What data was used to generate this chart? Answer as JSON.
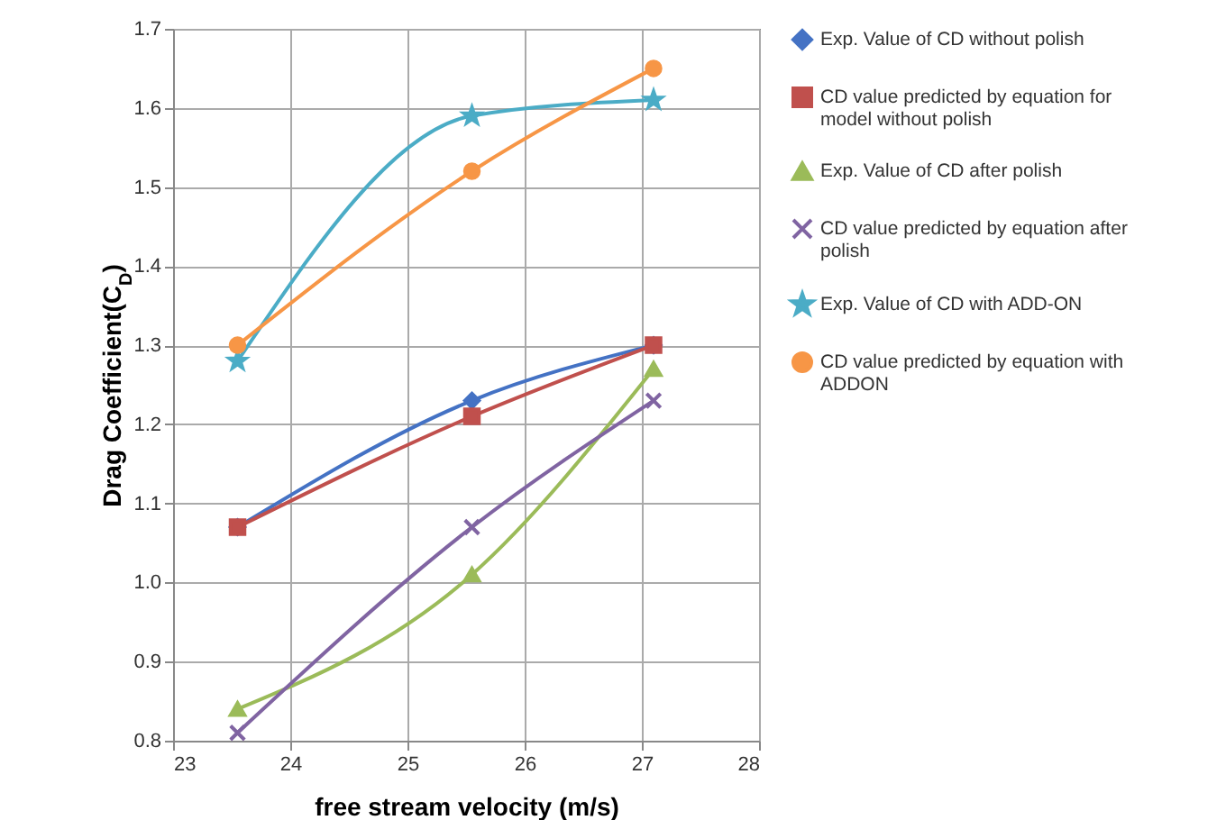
{
  "chart_data": {
    "type": "line",
    "xlabel": "free stream velocity (m/s)",
    "ylabel": "Drag Coefficient(C$_{D}$)",
    "x": [
      23.55,
      25.55,
      27.1
    ],
    "series": [
      {
        "name": "Exp. Value of CD without polish",
        "color": "#4472c4",
        "marker": "diamond",
        "values": [
          1.07,
          1.23,
          1.3
        ]
      },
      {
        "name": "CD value predicted by equation for model without polish",
        "color": "#c0504d",
        "marker": "square",
        "values": [
          1.07,
          1.21,
          1.3
        ]
      },
      {
        "name": "Exp. Value of CD after polish",
        "color": "#9bbb59",
        "marker": "triangle",
        "values": [
          0.84,
          1.01,
          1.27
        ]
      },
      {
        "name": "CD value predicted by equation after polish",
        "color": "#8064a2",
        "marker": "cross",
        "values": [
          0.81,
          1.07,
          1.23
        ]
      },
      {
        "name": "Exp. Value of CD with ADD-ON",
        "color": "#4bacc6",
        "marker": "star",
        "values": [
          1.28,
          1.59,
          1.61
        ]
      },
      {
        "name": "CD value predicted by equation with ADDON",
        "color": "#f79646",
        "marker": "circle",
        "values": [
          1.3,
          1.52,
          1.65
        ]
      }
    ],
    "xlim": [
      23,
      28
    ],
    "xticks": [
      23,
      24,
      25,
      26,
      27,
      28
    ],
    "ylim": [
      0.8,
      1.7
    ],
    "yticks": [
      0.8,
      0.9,
      {
        "value": 1,
        "label": "1.0"
      },
      1.1,
      1.2,
      1.3,
      1.4,
      1.5,
      1.6,
      1.7
    ],
    "grid": true,
    "legend": "right",
    "line_style": "solid"
  }
}
